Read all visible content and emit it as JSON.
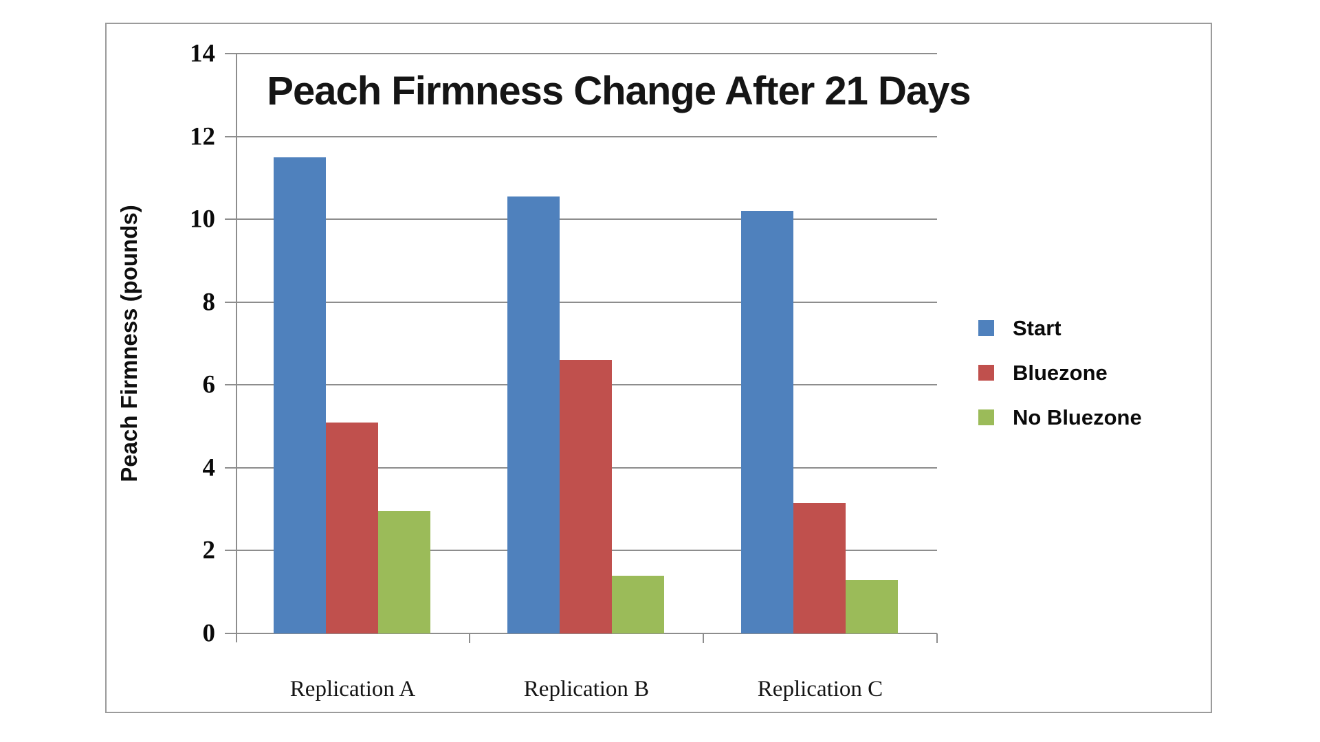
{
  "chart_data": {
    "type": "bar",
    "title": "Peach Firmness Change After 21 Days",
    "ylabel": "Peach Firmness (pounds)",
    "xlabel": "",
    "categories": [
      "Replication A",
      "Replication B",
      "Replication C"
    ],
    "series": [
      {
        "name": "Start",
        "color": "#4f81bd",
        "values": [
          11.5,
          10.55,
          10.2
        ]
      },
      {
        "name": "Bluezone",
        "color": "#c0504d",
        "values": [
          5.1,
          6.6,
          3.15
        ]
      },
      {
        "name": "No Bluezone",
        "color": "#9bbb59",
        "values": [
          2.95,
          1.4,
          1.3
        ]
      }
    ],
    "ylim": [
      0,
      14
    ],
    "yticks": [
      0,
      2,
      4,
      6,
      8,
      10,
      12,
      14
    ],
    "grid": true,
    "legend_position": "right",
    "gridline_color": "#8d8d8d",
    "bar_group_order": [
      "Start",
      "Bluezone",
      "No Bluezone"
    ]
  }
}
